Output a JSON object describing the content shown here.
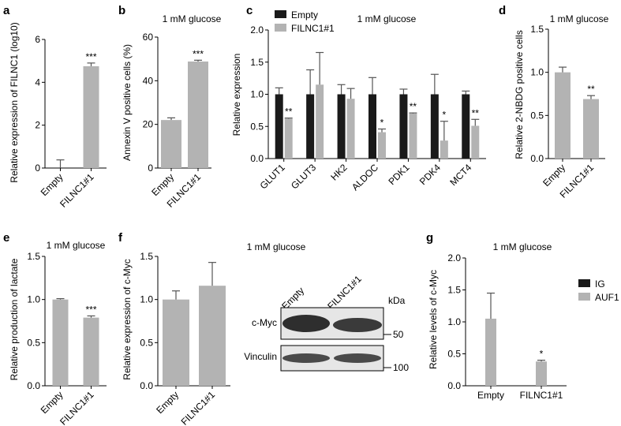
{
  "colors": {
    "gray": "#b3b3b3",
    "black": "#1a1a1a",
    "blot_bg": "#e6e6e6",
    "band": "#2e2e2e"
  },
  "chart_data": [
    {
      "panel": "a",
      "type": "bar",
      "title": "",
      "ylabel": "Relative expression of FILNC1 (log10)",
      "categories": [
        "Empty",
        "FILNC1#1"
      ],
      "values": [
        0.0,
        4.75
      ],
      "errors": [
        0.38,
        0.15
      ],
      "ylim": [
        0,
        6
      ],
      "yticks": [
        "0",
        "2",
        "4",
        "6"
      ],
      "annotations": [
        "",
        "***"
      ]
    },
    {
      "panel": "b",
      "type": "bar",
      "title": "1 mM glucose",
      "ylabel": "Annexin V positive cells (%)",
      "categories": [
        "Empty",
        "FILNC1#1"
      ],
      "values": [
        22.0,
        48.8
      ],
      "errors": [
        1.0,
        0.6
      ],
      "ylim": [
        0,
        60
      ],
      "yticks": [
        "0",
        "20",
        "40",
        "60"
      ],
      "annotations": [
        "",
        "***"
      ]
    },
    {
      "panel": "c",
      "type": "bar",
      "title": "1 mM glucose",
      "ylabel": "Relative expression",
      "categories": [
        "GLUT1",
        "GLUT3",
        "HK2",
        "ALDOC",
        "PDK1",
        "PDK4",
        "MCT4"
      ],
      "series": [
        {
          "name": "Empty",
          "values": [
            1.0,
            1.0,
            1.0,
            1.0,
            1.0,
            1.0,
            1.0
          ],
          "errors": [
            0.1,
            0.38,
            0.15,
            0.26,
            0.08,
            0.31,
            0.05
          ]
        },
        {
          "name": "FILNC1#1",
          "values": [
            0.62,
            1.15,
            0.93,
            0.41,
            0.7,
            0.28,
            0.51
          ],
          "errors": [
            0.01,
            0.5,
            0.16,
            0.05,
            0.01,
            0.3,
            0.1
          ]
        }
      ],
      "ylim": [
        0,
        2.0
      ],
      "yticks": [
        "0.0",
        "0.5",
        "1.0",
        "1.5",
        "2.0"
      ],
      "annotations": [
        "**",
        "",
        "",
        "*",
        "**",
        "*",
        "**"
      ],
      "legend": "top-left"
    },
    {
      "panel": "d",
      "type": "bar",
      "title": "1 mM glucose",
      "ylabel": "Relative 2-NBDG positive cells",
      "categories": [
        "Empty",
        "FILNC1#1"
      ],
      "values": [
        1.0,
        0.69
      ],
      "errors": [
        0.06,
        0.04
      ],
      "ylim": [
        0,
        1.5
      ],
      "yticks": [
        "0.0",
        "0.5",
        "1.0",
        "1.5"
      ],
      "annotations": [
        "",
        "**"
      ]
    },
    {
      "panel": "e",
      "type": "bar",
      "title": "1 mM glucose",
      "ylabel": "Relative production of lactate",
      "categories": [
        "Empty",
        "FILNC1#1"
      ],
      "values": [
        1.0,
        0.79
      ],
      "errors": [
        0.01,
        0.02
      ],
      "ylim": [
        0,
        1.5
      ],
      "yticks": [
        "0.0",
        "0.5",
        "1.0",
        "1.5"
      ],
      "annotations": [
        "",
        "***"
      ]
    },
    {
      "panel": "f",
      "type": "bar",
      "title": "1 mM glucose",
      "ylabel": "Relative expression of c-Myc",
      "categories": [
        "Empty",
        "FILNC1#1"
      ],
      "values": [
        1.0,
        1.16
      ],
      "errors": [
        0.1,
        0.27
      ],
      "ylim": [
        0,
        1.5
      ],
      "yticks": [
        "0.0",
        "0.5",
        "1.0",
        "1.5"
      ],
      "annotations": [
        "",
        ""
      ]
    },
    {
      "panel": "g",
      "type": "bar",
      "title": "1 mM glucose",
      "ylabel": "Relative levels of c-Myc",
      "categories": [
        "Empty",
        "FILNC1#1"
      ],
      "series": [
        {
          "name": "IG",
          "values": [
            0,
            0
          ],
          "errors": [
            0,
            0
          ]
        },
        {
          "name": "AUF1",
          "values": [
            1.05,
            0.38
          ],
          "errors": [
            0.4,
            0.02
          ]
        }
      ],
      "ylim": [
        0,
        2.0
      ],
      "yticks": [
        "0.0",
        "0.5",
        "1.0",
        "1.5",
        "2.0"
      ],
      "annotations": [
        "",
        "*"
      ],
      "legend": "top-right"
    }
  ],
  "blot": {
    "lanes": [
      "Empty",
      "FILNC1#1"
    ],
    "kda_label": "kDa",
    "rows": [
      {
        "name": "c-Myc",
        "marker": "50"
      },
      {
        "name": "Vinculin",
        "marker": "100"
      }
    ]
  }
}
